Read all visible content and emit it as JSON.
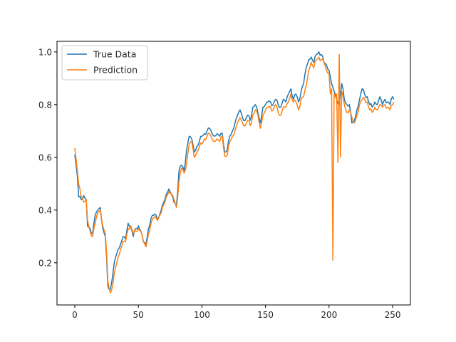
{
  "chart_data": {
    "type": "line",
    "title": "",
    "xlabel": "",
    "ylabel": "",
    "xlim": [
      -14,
      264
    ],
    "ylim": [
      0.04,
      1.04
    ],
    "x_ticks": [
      0,
      50,
      100,
      150,
      200,
      250
    ],
    "y_ticks": [
      0.2,
      0.4,
      0.6,
      0.8,
      1.0
    ],
    "grid": false,
    "legend": "top-left",
    "series": [
      {
        "name": "True Data",
        "color": "#1f77b4",
        "keypoints": [
          [
            0,
            0.61
          ],
          [
            2,
            0.53
          ],
          [
            3,
            0.45
          ],
          [
            6,
            0.44
          ],
          [
            7,
            0.455
          ],
          [
            9,
            0.44
          ],
          [
            10,
            0.34
          ],
          [
            12,
            0.33
          ],
          [
            14,
            0.31
          ],
          [
            16,
            0.38
          ],
          [
            18,
            0.4
          ],
          [
            20,
            0.41
          ],
          [
            22,
            0.33
          ],
          [
            24,
            0.3
          ],
          [
            25,
            0.22
          ],
          [
            26,
            0.11
          ],
          [
            28,
            0.1
          ],
          [
            30,
            0.16
          ],
          [
            32,
            0.22
          ],
          [
            34,
            0.25
          ],
          [
            36,
            0.27
          ],
          [
            38,
            0.3
          ],
          [
            40,
            0.29
          ],
          [
            42,
            0.35
          ],
          [
            44,
            0.34
          ],
          [
            46,
            0.3
          ],
          [
            48,
            0.33
          ],
          [
            50,
            0.34
          ],
          [
            52,
            0.32
          ],
          [
            54,
            0.28
          ],
          [
            56,
            0.27
          ],
          [
            58,
            0.33
          ],
          [
            60,
            0.37
          ],
          [
            62,
            0.38
          ],
          [
            64,
            0.38
          ],
          [
            66,
            0.37
          ],
          [
            68,
            0.4
          ],
          [
            70,
            0.43
          ],
          [
            72,
            0.46
          ],
          [
            74,
            0.48
          ],
          [
            76,
            0.46
          ],
          [
            78,
            0.43
          ],
          [
            80,
            0.42
          ],
          [
            82,
            0.55
          ],
          [
            84,
            0.57
          ],
          [
            86,
            0.55
          ],
          [
            88,
            0.63
          ],
          [
            90,
            0.68
          ],
          [
            92,
            0.67
          ],
          [
            94,
            0.62
          ],
          [
            96,
            0.64
          ],
          [
            98,
            0.66
          ],
          [
            100,
            0.68
          ],
          [
            102,
            0.69
          ],
          [
            104,
            0.7
          ],
          [
            106,
            0.71
          ],
          [
            108,
            0.69
          ],
          [
            110,
            0.68
          ],
          [
            112,
            0.69
          ],
          [
            114,
            0.68
          ],
          [
            116,
            0.69
          ],
          [
            118,
            0.62
          ],
          [
            120,
            0.63
          ],
          [
            122,
            0.68
          ],
          [
            124,
            0.7
          ],
          [
            126,
            0.73
          ],
          [
            128,
            0.76
          ],
          [
            130,
            0.78
          ],
          [
            132,
            0.75
          ],
          [
            134,
            0.74
          ],
          [
            136,
            0.76
          ],
          [
            138,
            0.74
          ],
          [
            140,
            0.79
          ],
          [
            142,
            0.8
          ],
          [
            144,
            0.77
          ],
          [
            146,
            0.73
          ],
          [
            148,
            0.79
          ],
          [
            150,
            0.8
          ],
          [
            152,
            0.81
          ],
          [
            154,
            0.81
          ],
          [
            156,
            0.8
          ],
          [
            158,
            0.82
          ],
          [
            160,
            0.8
          ],
          [
            162,
            0.79
          ],
          [
            164,
            0.82
          ],
          [
            166,
            0.81
          ],
          [
            168,
            0.84
          ],
          [
            170,
            0.86
          ],
          [
            172,
            0.82
          ],
          [
            174,
            0.84
          ],
          [
            176,
            0.81
          ],
          [
            178,
            0.85
          ],
          [
            180,
            0.88
          ],
          [
            182,
            0.94
          ],
          [
            184,
            0.97
          ],
          [
            186,
            0.98
          ],
          [
            188,
            0.96
          ],
          [
            190,
            0.99
          ],
          [
            192,
            1.0
          ],
          [
            194,
            0.99
          ],
          [
            196,
            0.96
          ],
          [
            198,
            0.95
          ],
          [
            200,
            0.93
          ],
          [
            202,
            0.88
          ],
          [
            204,
            0.85
          ],
          [
            206,
            0.82
          ],
          [
            208,
            0.8
          ],
          [
            210,
            0.88
          ],
          [
            212,
            0.82
          ],
          [
            214,
            0.8
          ],
          [
            216,
            0.8
          ],
          [
            218,
            0.73
          ],
          [
            220,
            0.74
          ],
          [
            222,
            0.78
          ],
          [
            224,
            0.82
          ],
          [
            226,
            0.86
          ],
          [
            228,
            0.84
          ],
          [
            230,
            0.83
          ],
          [
            232,
            0.8
          ],
          [
            234,
            0.79
          ],
          [
            236,
            0.81
          ],
          [
            238,
            0.8
          ],
          [
            240,
            0.83
          ],
          [
            242,
            0.8
          ],
          [
            244,
            0.82
          ],
          [
            246,
            0.81
          ],
          [
            248,
            0.8
          ],
          [
            250,
            0.83
          ],
          [
            251,
            0.82
          ]
        ]
      },
      {
        "name": "Prediction",
        "color": "#ff7f0e",
        "keypoints": [
          [
            0,
            0.635
          ],
          [
            2,
            0.55
          ],
          [
            3,
            0.5
          ],
          [
            5,
            0.45
          ],
          [
            7,
            0.43
          ],
          [
            9,
            0.44
          ],
          [
            10,
            0.36
          ],
          [
            12,
            0.32
          ],
          [
            14,
            0.3
          ],
          [
            16,
            0.35
          ],
          [
            18,
            0.39
          ],
          [
            20,
            0.4
          ],
          [
            22,
            0.34
          ],
          [
            24,
            0.31
          ],
          [
            25,
            0.24
          ],
          [
            26,
            0.13
          ],
          [
            28,
            0.085
          ],
          [
            30,
            0.12
          ],
          [
            32,
            0.18
          ],
          [
            34,
            0.22
          ],
          [
            36,
            0.25
          ],
          [
            38,
            0.28
          ],
          [
            40,
            0.28
          ],
          [
            42,
            0.33
          ],
          [
            44,
            0.34
          ],
          [
            46,
            0.31
          ],
          [
            48,
            0.32
          ],
          [
            50,
            0.33
          ],
          [
            52,
            0.32
          ],
          [
            54,
            0.28
          ],
          [
            56,
            0.26
          ],
          [
            58,
            0.31
          ],
          [
            60,
            0.35
          ],
          [
            62,
            0.37
          ],
          [
            64,
            0.37
          ],
          [
            66,
            0.37
          ],
          [
            68,
            0.39
          ],
          [
            70,
            0.42
          ],
          [
            72,
            0.45
          ],
          [
            74,
            0.47
          ],
          [
            76,
            0.46
          ],
          [
            78,
            0.44
          ],
          [
            80,
            0.41
          ],
          [
            82,
            0.51
          ],
          [
            84,
            0.56
          ],
          [
            86,
            0.54
          ],
          [
            88,
            0.58
          ],
          [
            90,
            0.65
          ],
          [
            92,
            0.66
          ],
          [
            94,
            0.6
          ],
          [
            96,
            0.62
          ],
          [
            98,
            0.64
          ],
          [
            100,
            0.65
          ],
          [
            102,
            0.67
          ],
          [
            104,
            0.68
          ],
          [
            106,
            0.69
          ],
          [
            108,
            0.67
          ],
          [
            110,
            0.66
          ],
          [
            112,
            0.67
          ],
          [
            114,
            0.66
          ],
          [
            116,
            0.68
          ],
          [
            118,
            0.605
          ],
          [
            120,
            0.61
          ],
          [
            122,
            0.66
          ],
          [
            124,
            0.68
          ],
          [
            126,
            0.7
          ],
          [
            128,
            0.73
          ],
          [
            130,
            0.75
          ],
          [
            132,
            0.73
          ],
          [
            134,
            0.72
          ],
          [
            136,
            0.74
          ],
          [
            138,
            0.72
          ],
          [
            140,
            0.76
          ],
          [
            142,
            0.78
          ],
          [
            144,
            0.76
          ],
          [
            146,
            0.71
          ],
          [
            148,
            0.76
          ],
          [
            150,
            0.78
          ],
          [
            152,
            0.79
          ],
          [
            154,
            0.79
          ],
          [
            156,
            0.78
          ],
          [
            158,
            0.8
          ],
          [
            160,
            0.77
          ],
          [
            162,
            0.76
          ],
          [
            164,
            0.79
          ],
          [
            166,
            0.79
          ],
          [
            168,
            0.81
          ],
          [
            170,
            0.84
          ],
          [
            172,
            0.81
          ],
          [
            174,
            0.81
          ],
          [
            176,
            0.78
          ],
          [
            178,
            0.82
          ],
          [
            180,
            0.83
          ],
          [
            182,
            0.87
          ],
          [
            184,
            0.93
          ],
          [
            186,
            0.96
          ],
          [
            188,
            0.94
          ],
          [
            190,
            0.97
          ],
          [
            192,
            0.98
          ],
          [
            194,
            0.97
          ],
          [
            196,
            0.96
          ],
          [
            198,
            0.93
          ],
          [
            200,
            0.92
          ],
          [
            201,
            0.84
          ],
          [
            202,
            0.86
          ],
          [
            203,
            0.21
          ],
          [
            204,
            0.84
          ],
          [
            205,
            0.83
          ],
          [
            206,
            0.84
          ],
          [
            207,
            0.58
          ],
          [
            208,
            0.99
          ],
          [
            209,
            0.6
          ],
          [
            210,
            0.85
          ],
          [
            212,
            0.8
          ],
          [
            214,
            0.77
          ],
          [
            216,
            0.78
          ],
          [
            218,
            0.75
          ],
          [
            220,
            0.73
          ],
          [
            222,
            0.76
          ],
          [
            224,
            0.8
          ],
          [
            226,
            0.82
          ],
          [
            228,
            0.82
          ],
          [
            230,
            0.81
          ],
          [
            232,
            0.78
          ],
          [
            234,
            0.77
          ],
          [
            236,
            0.79
          ],
          [
            238,
            0.78
          ],
          [
            240,
            0.8
          ],
          [
            242,
            0.79
          ],
          [
            244,
            0.8
          ],
          [
            246,
            0.79
          ],
          [
            248,
            0.78
          ],
          [
            250,
            0.8
          ],
          [
            251,
            0.81
          ]
        ]
      }
    ]
  }
}
